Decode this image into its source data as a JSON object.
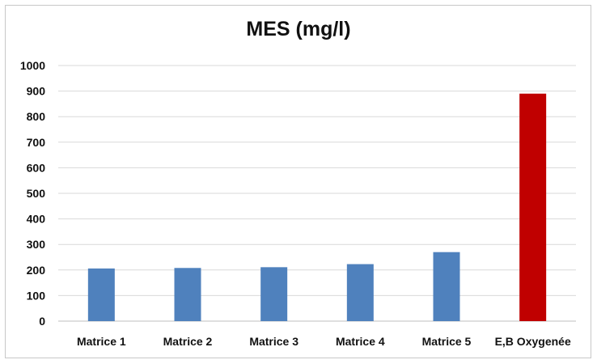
{
  "chart_data": {
    "type": "bar",
    "title": "MES (mg/l)",
    "xlabel": "",
    "ylabel": "",
    "categories": [
      "Matrice 1",
      "Matrice 2",
      "Matrice 3",
      "Matrice 4",
      "Matrice 5",
      "E,B Oxygenée"
    ],
    "values": [
      206,
      208,
      211,
      223,
      270,
      890
    ],
    "colors": [
      "#4f81bd",
      "#4f81bd",
      "#4f81bd",
      "#4f81bd",
      "#4f81bd",
      "#c00000"
    ],
    "ylim": [
      0,
      1000
    ],
    "yticks": [
      "0",
      "100",
      "200",
      "300",
      "400",
      "500",
      "600",
      "700",
      "800",
      "900",
      "1000"
    ],
    "grid": true,
    "legend": "none"
  }
}
